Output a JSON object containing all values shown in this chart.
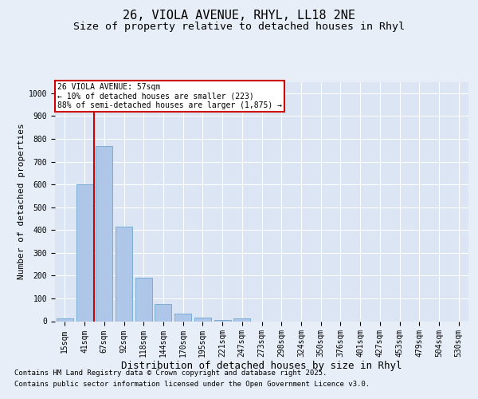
{
  "title_line1": "26, VIOLA AVENUE, RHYL, LL18 2NE",
  "title_line2": "Size of property relative to detached houses in Rhyl",
  "xlabel": "Distribution of detached houses by size in Rhyl",
  "ylabel": "Number of detached properties",
  "bar_color": "#aec6e8",
  "bar_edge_color": "#7aadd4",
  "background_color": "#e8eef8",
  "plot_bg_color": "#dce5f3",
  "grid_color": "#ffffff",
  "categories": [
    "15sqm",
    "41sqm",
    "67sqm",
    "92sqm",
    "118sqm",
    "144sqm",
    "170sqm",
    "195sqm",
    "221sqm",
    "247sqm",
    "273sqm",
    "298sqm",
    "324sqm",
    "350sqm",
    "376sqm",
    "401sqm",
    "427sqm",
    "453sqm",
    "479sqm",
    "504sqm",
    "530sqm"
  ],
  "values": [
    12,
    600,
    770,
    415,
    190,
    75,
    35,
    15,
    7,
    12,
    0,
    0,
    0,
    0,
    0,
    0,
    0,
    0,
    0,
    0,
    0
  ],
  "ylim": [
    0,
    1050
  ],
  "yticks": [
    0,
    100,
    200,
    300,
    400,
    500,
    600,
    700,
    800,
    900,
    1000
  ],
  "annotation_line1": "26 VIOLA AVENUE: 57sqm",
  "annotation_line2": "← 10% of detached houses are smaller (223)",
  "annotation_line3": "88% of semi-detached houses are larger (1,875) →",
  "annotation_box_color": "#ffffff",
  "annotation_box_edge": "#cc0000",
  "vline_color": "#cc0000",
  "vline_x": 1.5,
  "footer_line1": "Contains HM Land Registry data © Crown copyright and database right 2025.",
  "footer_line2": "Contains public sector information licensed under the Open Government Licence v3.0.",
  "title_fontsize": 11,
  "subtitle_fontsize": 9.5,
  "tick_fontsize": 7,
  "xlabel_fontsize": 9,
  "ylabel_fontsize": 8,
  "annotation_fontsize": 7,
  "footer_fontsize": 6.5
}
